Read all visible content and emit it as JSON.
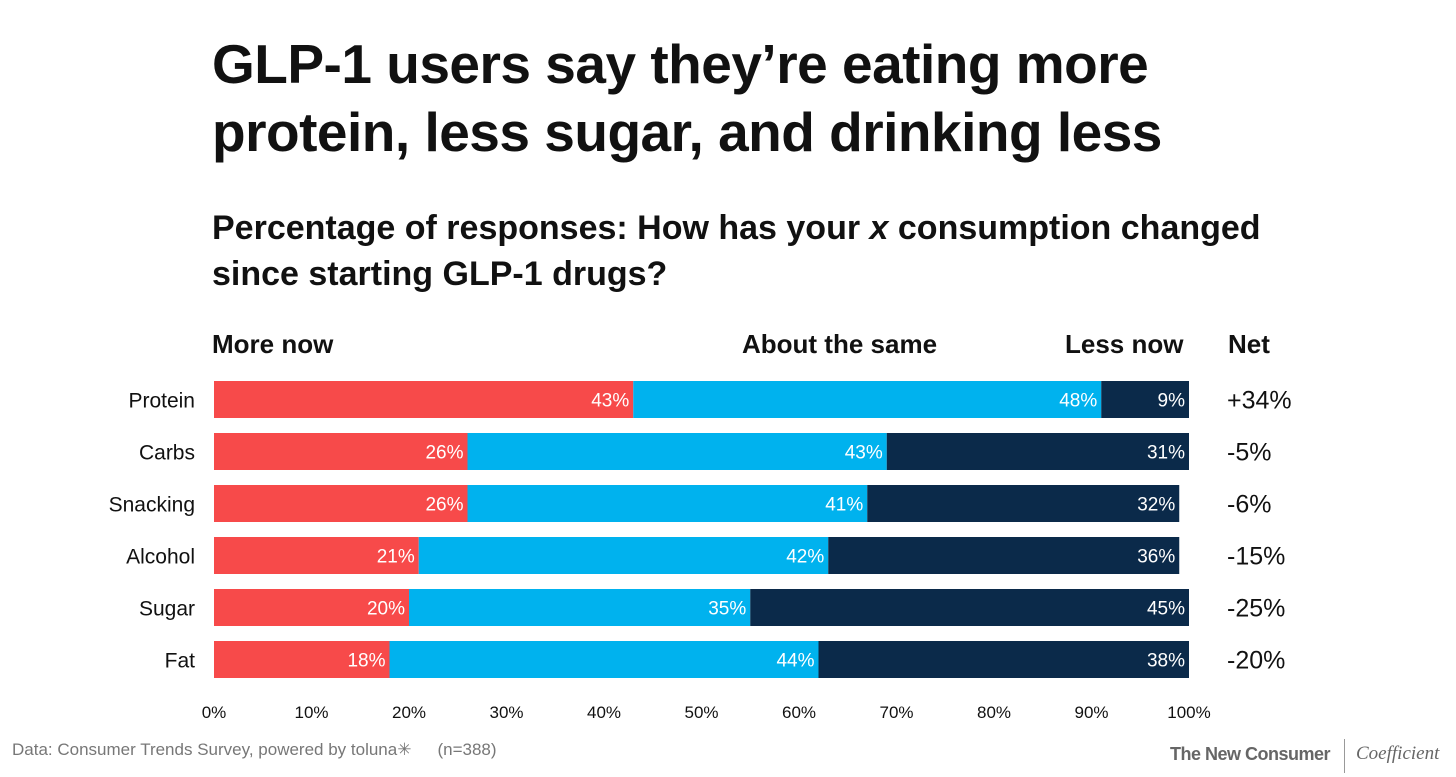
{
  "title": "GLP-1 users say they’re eating more protein, less sugar, and drinking less",
  "subtitle_prefix": "Percentage of responses: How has your ",
  "subtitle_var": "x",
  "subtitle_suffix": " consumption changed since starting GLP-1 drugs?",
  "headers": {
    "more": "More now",
    "same": "About the same",
    "less": "Less now",
    "net": "Net"
  },
  "footer": {
    "source": "Data: Consumer Trends Survey, powered by toluna✳",
    "n": "(n=388)",
    "brand": "The New Consumer",
    "partner": "Coefficient"
  },
  "colors": {
    "more": "#f74a4a",
    "same": "#00b2ee",
    "less": "#0b2a4a"
  },
  "chart_data": {
    "type": "bar",
    "orientation": "horizontal",
    "stacked": true,
    "categories": [
      "Protein",
      "Carbs",
      "Snacking",
      "Alcohol",
      "Sugar",
      "Fat"
    ],
    "series": [
      {
        "name": "More now",
        "values": [
          43,
          26,
          26,
          21,
          20,
          18
        ]
      },
      {
        "name": "About the same",
        "values": [
          48,
          43,
          41,
          42,
          35,
          44
        ]
      },
      {
        "name": "Less now",
        "values": [
          9,
          31,
          32,
          36,
          45,
          38
        ]
      }
    ],
    "net": [
      "+34%",
      "-5%",
      "-6%",
      "-15%",
      "-25%",
      "-20%"
    ],
    "xticks": [
      "0%",
      "10%",
      "20%",
      "30%",
      "40%",
      "50%",
      "60%",
      "70%",
      "80%",
      "90%",
      "100%"
    ],
    "xlim": [
      0,
      100
    ],
    "grid": false
  }
}
